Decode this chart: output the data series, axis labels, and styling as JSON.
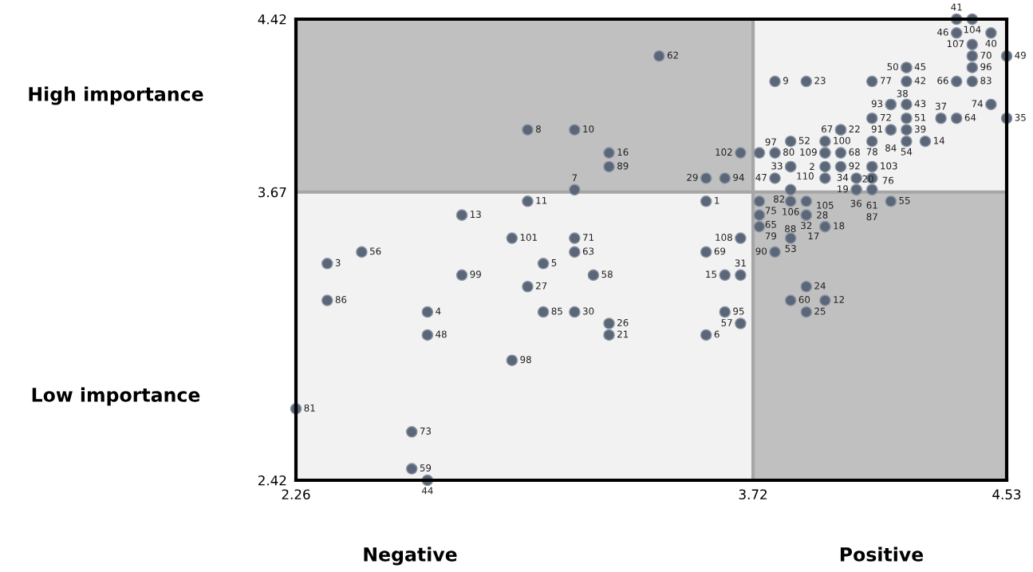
{
  "chart_data": {
    "type": "scatter",
    "x": [
      4.37,
      4.42,
      4.37,
      4.48,
      4.42,
      4.42,
      4.53,
      4.42,
      4.21,
      4.21,
      4.42,
      4.37,
      4.1,
      4.21,
      3.79,
      3.89,
      3.42,
      4.48,
      4.16,
      4.16,
      4.21,
      4.32,
      4.37,
      4.53,
      4.1,
      4.21,
      4.0,
      4.0,
      4.16,
      4.16,
      4.21,
      3.0,
      3.15,
      3.84,
      3.95,
      4.1,
      4.21,
      4.27,
      3.68,
      3.74,
      3.79,
      3.95,
      3.95,
      4.0,
      3.26,
      3.84,
      3.84,
      3.95,
      4.0,
      4.1,
      4.1,
      3.26,
      3.79,
      3.95,
      4.05,
      4.1,
      3.57,
      3.63,
      3.84,
      4.05,
      4.05,
      4.1,
      4.1,
      3.15,
      3.57,
      3.74,
      3.84,
      3.89,
      4.16,
      3.0,
      3.74,
      3.89,
      3.89,
      2.79,
      3.74,
      3.95,
      3.95,
      3.68,
      3.84,
      2.95,
      3.15,
      3.57,
      3.79,
      3.15,
      2.47,
      2.36,
      3.05,
      3.63,
      3.68,
      2.79,
      3.21,
      3.89,
      3.0,
      3.84,
      3.95,
      2.36,
      3.89,
      3.63,
      2.68,
      3.05,
      3.15,
      3.68,
      3.26,
      3.57,
      2.68,
      3.26,
      2.95,
      2.26,
      2.63,
      2.63,
      2.68
    ],
    "values": [
      4.42,
      4.42,
      4.36,
      4.36,
      4.31,
      4.26,
      4.26,
      4.21,
      4.21,
      4.21,
      4.15,
      4.15,
      4.15,
      4.15,
      4.15,
      4.15,
      4.26,
      4.05,
      4.05,
      4.05,
      4.05,
      3.99,
      3.99,
      3.99,
      3.99,
      3.99,
      3.94,
      3.94,
      3.94,
      3.94,
      3.94,
      3.94,
      3.94,
      3.89,
      3.89,
      3.89,
      3.89,
      3.89,
      3.84,
      3.84,
      3.84,
      3.84,
      3.84,
      3.84,
      3.84,
      3.78,
      3.78,
      3.78,
      3.78,
      3.78,
      3.78,
      3.78,
      3.73,
      3.73,
      3.73,
      3.73,
      3.73,
      3.73,
      3.68,
      3.68,
      3.68,
      3.68,
      3.68,
      3.68,
      3.63,
      3.63,
      3.63,
      3.63,
      3.63,
      3.63,
      3.57,
      3.57,
      3.57,
      3.57,
      3.52,
      3.52,
      3.52,
      3.47,
      3.47,
      3.47,
      3.47,
      3.41,
      3.41,
      3.41,
      3.41,
      3.36,
      3.36,
      3.31,
      3.31,
      3.31,
      3.31,
      3.26,
      3.26,
      3.2,
      3.2,
      3.2,
      3.15,
      3.15,
      3.15,
      3.15,
      3.15,
      3.1,
      3.1,
      3.05,
      3.05,
      3.05,
      2.94,
      2.73,
      2.63,
      2.47,
      2.42
    ],
    "color": "#5b6778",
    "marker": "circle",
    "xlim": [
      2.26,
      4.53
    ],
    "ylim": [
      2.42,
      4.42
    ],
    "xticks": [
      2.26,
      3.72,
      4.53
    ],
    "yticks": [
      2.42,
      3.67,
      4.42
    ],
    "grid": false,
    "legend": false,
    "ref_lines": [
      {
        "axis": "x",
        "value": 3.72,
        "color": "#a6a6a6"
      },
      {
        "axis": "y",
        "value": 3.67,
        "color": "#a6a6a6"
      }
    ],
    "annotations": [
      "High importance",
      "Low importance",
      "Negative",
      "Positive",
      {
        "text": "41",
        "x": 4.37,
        "y": 4.42
      },
      {
        "text": "104",
        "x": 4.42,
        "y": 4.42
      },
      {
        "text": "46",
        "x": 4.37,
        "y": 4.36
      },
      {
        "text": "40",
        "x": 4.48,
        "y": 4.36
      },
      {
        "text": "107",
        "x": 4.42,
        "y": 4.31
      },
      {
        "text": "70",
        "x": 4.42,
        "y": 4.26
      },
      {
        "text": "49",
        "x": 4.53,
        "y": 4.26
      },
      {
        "text": "96",
        "x": 4.42,
        "y": 4.21
      },
      {
        "text": "45",
        "x": 4.21,
        "y": 4.21
      },
      {
        "text": "50",
        "x": 4.21,
        "y": 4.21
      },
      {
        "text": "83",
        "x": 4.42,
        "y": 4.15
      },
      {
        "text": "66",
        "x": 4.37,
        "y": 4.15
      },
      {
        "text": "77",
        "x": 4.1,
        "y": 4.15
      },
      {
        "text": "42",
        "x": 4.21,
        "y": 4.15
      },
      {
        "text": "9",
        "x": 3.79,
        "y": 4.15
      },
      {
        "text": "23",
        "x": 3.89,
        "y": 4.15
      },
      {
        "text": "62",
        "x": 3.42,
        "y": 4.26
      },
      {
        "text": "74",
        "x": 4.48,
        "y": 4.05
      },
      {
        "text": "43",
        "x": 4.21,
        "y": 4.05
      },
      {
        "text": "93",
        "x": 4.16,
        "y": 4.05
      },
      {
        "text": "38",
        "x": 4.16,
        "y": 4.05
      },
      {
        "text": "51",
        "x": 4.21,
        "y": 3.99
      },
      {
        "text": "64",
        "x": 4.37,
        "y": 3.99
      },
      {
        "text": "35",
        "x": 4.53,
        "y": 3.99
      },
      {
        "text": "37",
        "x": 4.32,
        "y": 3.99
      },
      {
        "text": "72",
        "x": 4.1,
        "y": 3.99
      },
      {
        "text": "22",
        "x": 4.0,
        "y": 3.94
      },
      {
        "text": "67",
        "x": 4.0,
        "y": 3.94
      },
      {
        "text": "39",
        "x": 4.21,
        "y": 3.94
      },
      {
        "text": "91",
        "x": 4.16,
        "y": 3.94
      },
      {
        "text": "84",
        "x": 4.16,
        "y": 3.94
      },
      {
        "text": "8",
        "x": 3.0,
        "y": 3.94
      },
      {
        "text": "10",
        "x": 3.15,
        "y": 3.94
      },
      {
        "text": "52",
        "x": 3.84,
        "y": 3.89
      },
      {
        "text": "100",
        "x": 3.95,
        "y": 3.89
      },
      {
        "text": "78",
        "x": 4.1,
        "y": 3.89
      },
      {
        "text": "14",
        "x": 4.27,
        "y": 3.89
      },
      {
        "text": "54",
        "x": 4.21,
        "y": 3.89
      },
      {
        "text": "68",
        "x": 4.0,
        "y": 3.84
      },
      {
        "text": "80",
        "x": 3.79,
        "y": 3.84
      },
      {
        "text": "97",
        "x": 3.74,
        "y": 3.84
      },
      {
        "text": "102",
        "x": 3.68,
        "y": 3.84
      },
      {
        "text": "109",
        "x": 3.95,
        "y": 3.84
      },
      {
        "text": "2",
        "x": 3.95,
        "y": 3.84
      },
      {
        "text": "16",
        "x": 3.26,
        "y": 3.84
      },
      {
        "text": "33",
        "x": 3.84,
        "y": 3.78
      },
      {
        "text": "110",
        "x": 3.84,
        "y": 3.78
      },
      {
        "text": "92",
        "x": 4.0,
        "y": 3.78
      },
      {
        "text": "103",
        "x": 4.1,
        "y": 3.78
      },
      {
        "text": "76",
        "x": 4.1,
        "y": 3.78
      },
      {
        "text": "89",
        "x": 3.26,
        "y": 3.78
      },
      {
        "text": "47",
        "x": 3.79,
        "y": 3.73
      },
      {
        "text": "61",
        "x": 4.1,
        "y": 3.73
      },
      {
        "text": "34",
        "x": 4.05,
        "y": 3.73
      },
      {
        "text": "105",
        "x": 3.95,
        "y": 3.73
      },
      {
        "text": "94",
        "x": 3.63,
        "y": 3.73
      },
      {
        "text": "29",
        "x": 3.57,
        "y": 3.73
      },
      {
        "text": "36",
        "x": 4.1,
        "y": 3.68
      },
      {
        "text": "87",
        "x": 4.1,
        "y": 3.68
      },
      {
        "text": "19",
        "x": 4.05,
        "y": 3.68
      },
      {
        "text": "20",
        "x": 4.05,
        "y": 3.68
      },
      {
        "text": "82",
        "x": 3.84,
        "y": 3.68
      },
      {
        "text": "7",
        "x": 3.15,
        "y": 3.68
      },
      {
        "text": "1",
        "x": 3.57,
        "y": 3.63
      },
      {
        "text": "75",
        "x": 3.74,
        "y": 3.63
      },
      {
        "text": "106",
        "x": 3.84,
        "y": 3.63
      },
      {
        "text": "28",
        "x": 3.89,
        "y": 3.63
      },
      {
        "text": "55",
        "x": 4.16,
        "y": 3.63
      },
      {
        "text": "11",
        "x": 3.0,
        "y": 3.63
      },
      {
        "text": "65",
        "x": 3.74,
        "y": 3.57
      },
      {
        "text": "32",
        "x": 3.89,
        "y": 3.57
      },
      {
        "text": "88",
        "x": 3.89,
        "y": 3.57
      },
      {
        "text": "13",
        "x": 2.79,
        "y": 3.57
      },
      {
        "text": "79",
        "x": 3.74,
        "y": 3.52
      },
      {
        "text": "18",
        "x": 3.95,
        "y": 3.52
      },
      {
        "text": "17",
        "x": 3.95,
        "y": 3.52
      },
      {
        "text": "108",
        "x": 3.68,
        "y": 3.47
      },
      {
        "text": "53",
        "x": 3.84,
        "y": 3.47
      },
      {
        "text": "101",
        "x": 2.95,
        "y": 3.47
      },
      {
        "text": "71",
        "x": 3.15,
        "y": 3.47
      },
      {
        "text": "69",
        "x": 3.57,
        "y": 3.41
      },
      {
        "text": "90",
        "x": 3.79,
        "y": 3.41
      },
      {
        "text": "63",
        "x": 3.15,
        "y": 3.41
      },
      {
        "text": "56",
        "x": 2.47,
        "y": 3.41
      },
      {
        "text": "3",
        "x": 2.36,
        "y": 3.36
      },
      {
        "text": "5",
        "x": 3.05,
        "y": 3.36
      },
      {
        "text": "31",
        "x": 3.68,
        "y": 3.31
      },
      {
        "text": "15",
        "x": 3.63,
        "y": 3.31
      },
      {
        "text": "99",
        "x": 2.79,
        "y": 3.31
      },
      {
        "text": "58",
        "x": 3.21,
        "y": 3.31
      },
      {
        "text": "24",
        "x": 3.89,
        "y": 3.26
      },
      {
        "text": "27",
        "x": 3.0,
        "y": 3.26
      },
      {
        "text": "12",
        "x": 3.95,
        "y": 3.2
      },
      {
        "text": "60",
        "x": 3.84,
        "y": 3.2
      },
      {
        "text": "86",
        "x": 2.36,
        "y": 3.2
      },
      {
        "text": "25",
        "x": 3.89,
        "y": 3.15
      },
      {
        "text": "95",
        "x": 3.63,
        "y": 3.15
      },
      {
        "text": "4",
        "x": 2.68,
        "y": 3.15
      },
      {
        "text": "85",
        "x": 3.05,
        "y": 3.15
      },
      {
        "text": "30",
        "x": 3.15,
        "y": 3.15
      },
      {
        "text": "57",
        "x": 3.68,
        "y": 3.1
      },
      {
        "text": "26",
        "x": 3.26,
        "y": 3.1
      },
      {
        "text": "6",
        "x": 3.57,
        "y": 3.05
      },
      {
        "text": "48",
        "x": 2.68,
        "y": 3.05
      },
      {
        "text": "21",
        "x": 3.26,
        "y": 3.05
      },
      {
        "text": "98",
        "x": 2.95,
        "y": 2.94
      },
      {
        "text": "81",
        "x": 2.26,
        "y": 2.73
      },
      {
        "text": "73",
        "x": 2.63,
        "y": 2.63
      },
      {
        "text": "59",
        "x": 2.63,
        "y": 2.47
      },
      {
        "text": "44",
        "x": 2.68,
        "y": 2.42
      }
    ]
  }
}
